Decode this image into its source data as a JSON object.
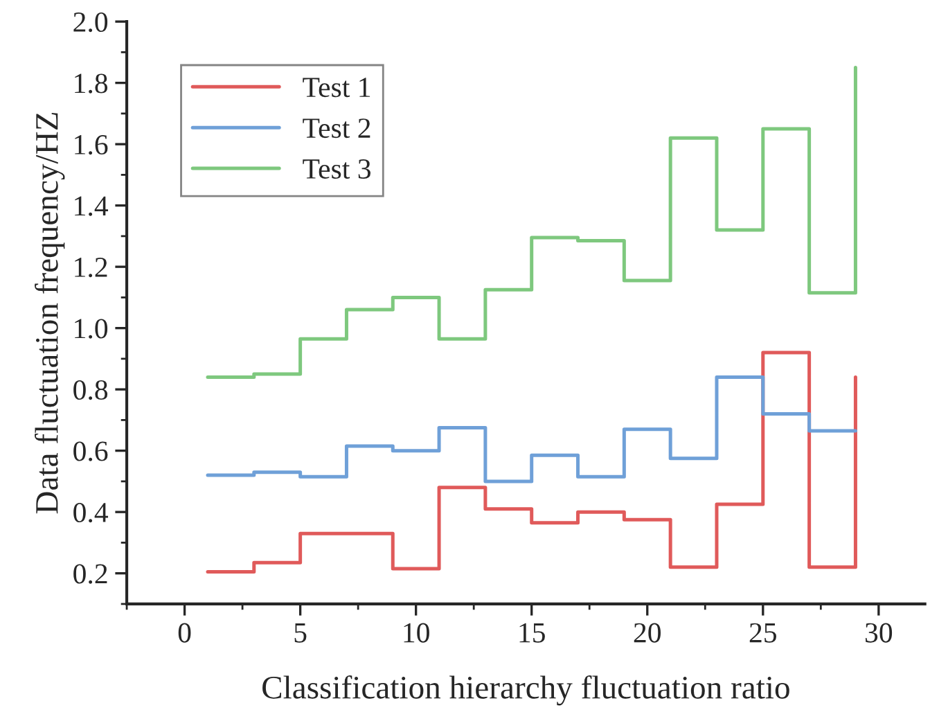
{
  "chart_data": {
    "type": "step",
    "xlabel": "Classification hierarchy fluctuation ratio",
    "ylabel": "Data fluctuation frequency/HZ",
    "x": [
      1,
      3,
      5,
      7,
      9,
      11,
      13,
      15,
      17,
      19,
      21,
      23,
      25,
      27,
      29
    ],
    "series": [
      {
        "name": "Test 1",
        "color": "#e05a5a",
        "values": [
          0.205,
          0.235,
          0.33,
          0.33,
          0.215,
          0.48,
          0.41,
          0.365,
          0.4,
          0.375,
          0.22,
          0.425,
          0.92,
          0.22,
          0.84
        ]
      },
      {
        "name": "Test 2",
        "color": "#6fa0d8",
        "values": [
          0.52,
          0.53,
          0.515,
          0.615,
          0.6,
          0.675,
          0.5,
          0.585,
          0.515,
          0.67,
          0.575,
          0.84,
          0.72,
          0.665,
          0.665
        ]
      },
      {
        "name": "Test 3",
        "color": "#7ec87e",
        "values": [
          0.84,
          0.85,
          0.965,
          1.06,
          1.1,
          0.965,
          1.125,
          1.295,
          1.285,
          1.155,
          1.62,
          1.32,
          1.65,
          1.115,
          1.85
        ]
      }
    ],
    "xlim": [
      -2.5,
      32
    ],
    "ylim": [
      0.1,
      2.0
    ],
    "xticks": [
      0,
      5,
      10,
      15,
      20,
      25,
      30
    ],
    "yticks": [
      {
        "value": 0.2,
        "label": "0.2"
      },
      {
        "value": 0.4,
        "label": "0.4"
      },
      {
        "value": 0.6,
        "label": "0.6"
      },
      {
        "value": 0.8,
        "label": "0.8"
      },
      {
        "value": 1.0,
        "label": "1.0"
      },
      {
        "value": 1.2,
        "label": "1.2"
      },
      {
        "value": 1.4,
        "label": "1.4"
      },
      {
        "value": 1.6,
        "label": "1.6"
      },
      {
        "value": 1.8,
        "label": "1.8"
      },
      {
        "value": 2.0,
        "label": "2.0"
      }
    ],
    "legend": "top left",
    "grid": false
  }
}
